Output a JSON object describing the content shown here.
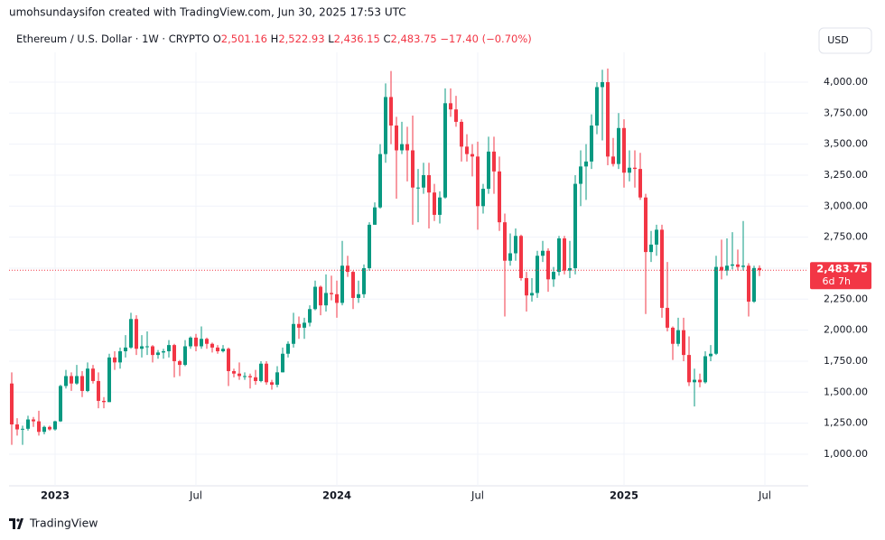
{
  "header": {
    "attribution": "umohsundaysifon created with TradingView.com, Jun 30, 2025 17:53 UTC"
  },
  "legend": {
    "symbol": "Ethereum / U.S. Dollar · 1W · CRYPTO",
    "open_prefix": "O",
    "open": "2,501.16",
    "high_prefix": "H",
    "high": "2,522.93",
    "low_prefix": "L",
    "low": "2,436.15",
    "close_prefix": "C",
    "close": "2,483.75",
    "change": "−17.40 (−0.70%)"
  },
  "currency_button": "USD",
  "footer": {
    "logo": "TradingView"
  },
  "chart_data": {
    "type": "candlestick",
    "up_color": "#089981",
    "down_color": "#f23645",
    "grid": true,
    "last_price_label": "2,483.75",
    "countdown": "6d 7h",
    "xlim": [
      -0.5,
      147
    ],
    "ylim": [
      745,
      4240
    ],
    "xticks": [
      {
        "value": 8,
        "label": "2023"
      },
      {
        "value": 34,
        "label": "Jul"
      },
      {
        "value": 60,
        "label": "2024"
      },
      {
        "value": 86,
        "label": "Jul"
      },
      {
        "value": 113,
        "label": "2025"
      },
      {
        "value": 139,
        "label": "Jul"
      }
    ],
    "yticks": [
      {
        "value": 1000,
        "label": "1,000.00"
      },
      {
        "value": 1250,
        "label": "1,250.00"
      },
      {
        "value": 1500,
        "label": "1,500.00"
      },
      {
        "value": 1750,
        "label": "1,750.00"
      },
      {
        "value": 2000,
        "label": "2,000.00"
      },
      {
        "value": 2250,
        "label": "2,250.00"
      },
      {
        "value": 2500,
        "label": "2,500.00"
      },
      {
        "value": 2750,
        "label": "2,750.00"
      },
      {
        "value": 3000,
        "label": "3,000.00"
      },
      {
        "value": 3250,
        "label": "3,250.00"
      },
      {
        "value": 3500,
        "label": "3,500.00"
      },
      {
        "value": 3750,
        "label": "3,750.00"
      },
      {
        "value": 4000,
        "label": "4,000.00"
      }
    ],
    "open": [
      1570,
      1240,
      1200,
      1205,
      1280,
      1265,
      1180,
      1220,
      1200,
      1265,
      1550,
      1630,
      1570,
      1630,
      1510,
      1690,
      1590,
      1430,
      1420,
      1780,
      1740,
      1830,
      1860,
      2090,
      1850,
      1870,
      1870,
      1800,
      1820,
      1830,
      1880,
      1750,
      1720,
      1870,
      1940,
      1870,
      1930,
      1890,
      1860,
      1830,
      1850,
      1670,
      1650,
      1630,
      1630,
      1620,
      1590,
      1730,
      1580,
      1560,
      1660,
      1810,
      1890,
      2050,
      2020,
      2060,
      2170,
      2350,
      2200,
      2300,
      2290,
      2220,
      2520,
      2470,
      2260,
      2290,
      2500,
      2850,
      2990,
      3420,
      3880,
      3650,
      3450,
      3500,
      3450,
      3150,
      3150,
      3250,
      3110,
      2930,
      3070,
      3830,
      3780,
      3680,
      3480,
      3420,
      3400,
      3000,
      3140,
      3440,
      3280,
      2870,
      2560,
      2620,
      2760,
      2420,
      2280,
      2300,
      2600,
      2640,
      2410,
      2470,
      2740,
      2480,
      2500,
      3180,
      3320,
      3360,
      3650,
      3960,
      4000,
      3400,
      3340,
      3630,
      3270,
      3310,
      3300,
      3070,
      2630,
      2690,
      2810,
      2180,
      2020,
      1890,
      2000,
      1800,
      1580,
      1600,
      1580,
      1790,
      1810,
      2510,
      2480,
      2520,
      2530,
      2510,
      2520,
      2230,
      2501.16
    ],
    "high": [
      1660,
      1290,
      1230,
      1310,
      1300,
      1350,
      1230,
      1230,
      1270,
      1560,
      1680,
      1660,
      1720,
      1670,
      1740,
      1720,
      1660,
      1460,
      1810,
      1830,
      1860,
      1960,
      2140,
      2120,
      1960,
      1990,
      1880,
      1840,
      1850,
      1920,
      1890,
      1760,
      1920,
      1950,
      1970,
      2030,
      1940,
      1900,
      1880,
      1880,
      1860,
      1690,
      1740,
      1660,
      1650,
      1680,
      1750,
      1750,
      1600,
      1710,
      1860,
      1910,
      2140,
      2110,
      2100,
      2200,
      2400,
      2360,
      2450,
      2440,
      2400,
      2720,
      2600,
      2480,
      2400,
      2530,
      2870,
      3030,
      3500,
      3990,
      4090,
      3720,
      3680,
      3640,
      3730,
      3300,
      3350,
      3350,
      3180,
      3120,
      3950,
      3950,
      3890,
      3700,
      3580,
      3500,
      3520,
      3180,
      3560,
      3560,
      3400,
      2940,
      2780,
      2820,
      2770,
      2470,
      2420,
      2640,
      2720,
      2660,
      2510,
      2760,
      2760,
      2720,
      3250,
      3450,
      3500,
      3740,
      4000,
      4100,
      4110,
      3550,
      3750,
      3700,
      3450,
      3450,
      3430,
      3100,
      2800,
      2850,
      2850,
      2550,
      2030,
      2100,
      2100,
      1950,
      1690,
      1650,
      1830,
      1880,
      2600,
      2730,
      2740,
      2790,
      2650,
      2880,
      2540,
      2520,
      2522.93
    ],
    "low": [
      1075,
      1150,
      1075,
      1190,
      1220,
      1150,
      1160,
      1190,
      1190,
      1260,
      1530,
      1510,
      1560,
      1460,
      1500,
      1570,
      1370,
      1370,
      1420,
      1680,
      1690,
      1780,
      1850,
      1800,
      1780,
      1800,
      1740,
      1770,
      1770,
      1780,
      1620,
      1630,
      1710,
      1850,
      1830,
      1850,
      1850,
      1820,
      1810,
      1820,
      1550,
      1620,
      1600,
      1600,
      1530,
      1560,
      1580,
      1560,
      1520,
      1540,
      1660,
      1780,
      1860,
      1930,
      1930,
      2030,
      2160,
      2120,
      2150,
      2240,
      2100,
      2200,
      2430,
      2170,
      2220,
      2260,
      2480,
      2850,
      2980,
      3350,
      3500,
      3060,
      3420,
      3200,
      2850,
      2870,
      3100,
      2820,
      2880,
      2860,
      3060,
      3720,
      3640,
      3360,
      3360,
      3240,
      2810,
      2940,
      3100,
      3100,
      2800,
      2110,
      2520,
      2560,
      2400,
      2150,
      2230,
      2260,
      2550,
      2310,
      2350,
      2440,
      2450,
      2420,
      2450,
      3000,
      3050,
      3300,
      3580,
      3530,
      3330,
      3320,
      3300,
      3150,
      3200,
      3150,
      3050,
      2130,
      2550,
      2600,
      2100,
      1990,
      1760,
      1870,
      1750,
      1550,
      1385,
      1540,
      1570,
      1750,
      1800,
      2410,
      2440,
      2490,
      2480,
      2480,
      2110,
      2220,
      2436.15
    ],
    "close": [
      1240,
      1200,
      1205,
      1280,
      1265,
      1180,
      1220,
      1200,
      1265,
      1550,
      1630,
      1570,
      1630,
      1510,
      1690,
      1590,
      1430,
      1420,
      1780,
      1740,
      1830,
      1860,
      2090,
      1850,
      1870,
      1870,
      1800,
      1820,
      1830,
      1880,
      1750,
      1720,
      1870,
      1940,
      1870,
      1930,
      1890,
      1860,
      1830,
      1850,
      1670,
      1650,
      1630,
      1630,
      1620,
      1590,
      1730,
      1580,
      1560,
      1660,
      1810,
      1890,
      2050,
      2020,
      2060,
      2170,
      2350,
      2200,
      2300,
      2290,
      2220,
      2520,
      2470,
      2260,
      2290,
      2500,
      2850,
      2990,
      3420,
      3880,
      3650,
      3450,
      3500,
      3450,
      3150,
      3150,
      3250,
      3110,
      2930,
      3070,
      3830,
      3780,
      3680,
      3480,
      3420,
      3400,
      3000,
      3140,
      3440,
      3280,
      2870,
      2560,
      2620,
      2760,
      2420,
      2280,
      2300,
      2600,
      2640,
      2410,
      2470,
      2740,
      2480,
      2500,
      3180,
      3320,
      3360,
      3650,
      3960,
      4000,
      3400,
      3340,
      3630,
      3270,
      3310,
      3300,
      3070,
      2630,
      2690,
      2810,
      2180,
      2020,
      1890,
      2000,
      1800,
      1580,
      1600,
      1580,
      1790,
      1810,
      2510,
      2480,
      2520,
      2530,
      2510,
      2520,
      2230,
      2501.16,
      2483.75
    ]
  }
}
